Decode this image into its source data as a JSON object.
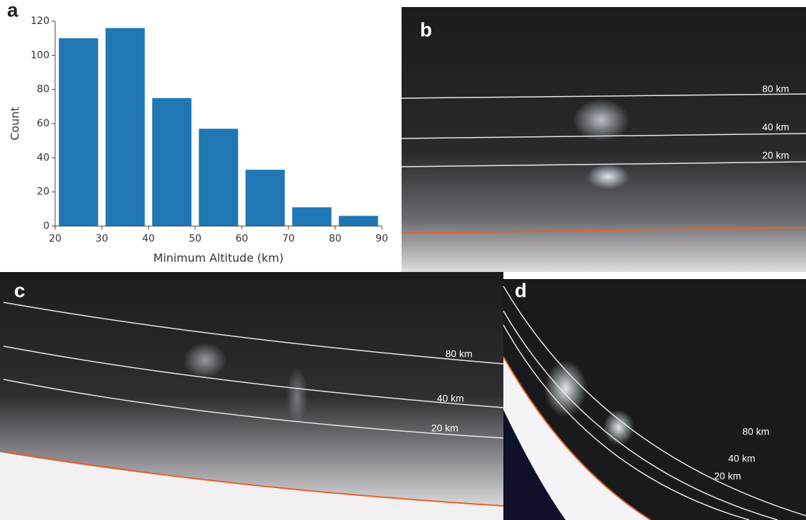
{
  "chart_data": {
    "type": "histogram",
    "panel_label": "a",
    "xlabel": "Minimum Altitude (km)",
    "ylabel": "Count",
    "bins": [
      20,
      30,
      40,
      50,
      60,
      70,
      80,
      90
    ],
    "values": [
      110,
      116,
      75,
      57,
      33,
      11,
      6
    ],
    "color": "#1f77b4",
    "xlim": [
      20,
      90
    ],
    "ylim": [
      0,
      120
    ],
    "xticks": [
      20,
      30,
      40,
      50,
      60,
      70,
      80,
      90
    ],
    "yticks": [
      0,
      20,
      40,
      60,
      80,
      100,
      120
    ]
  },
  "images": [
    {
      "label": "b",
      "contours": [
        "80 km",
        "40 km",
        "20 km"
      ]
    },
    {
      "label": "c",
      "contours": [
        "80 km",
        "40 km",
        "20 km"
      ]
    },
    {
      "label": "d",
      "contours": [
        "80 km",
        "40 km",
        "20 km"
      ]
    }
  ]
}
